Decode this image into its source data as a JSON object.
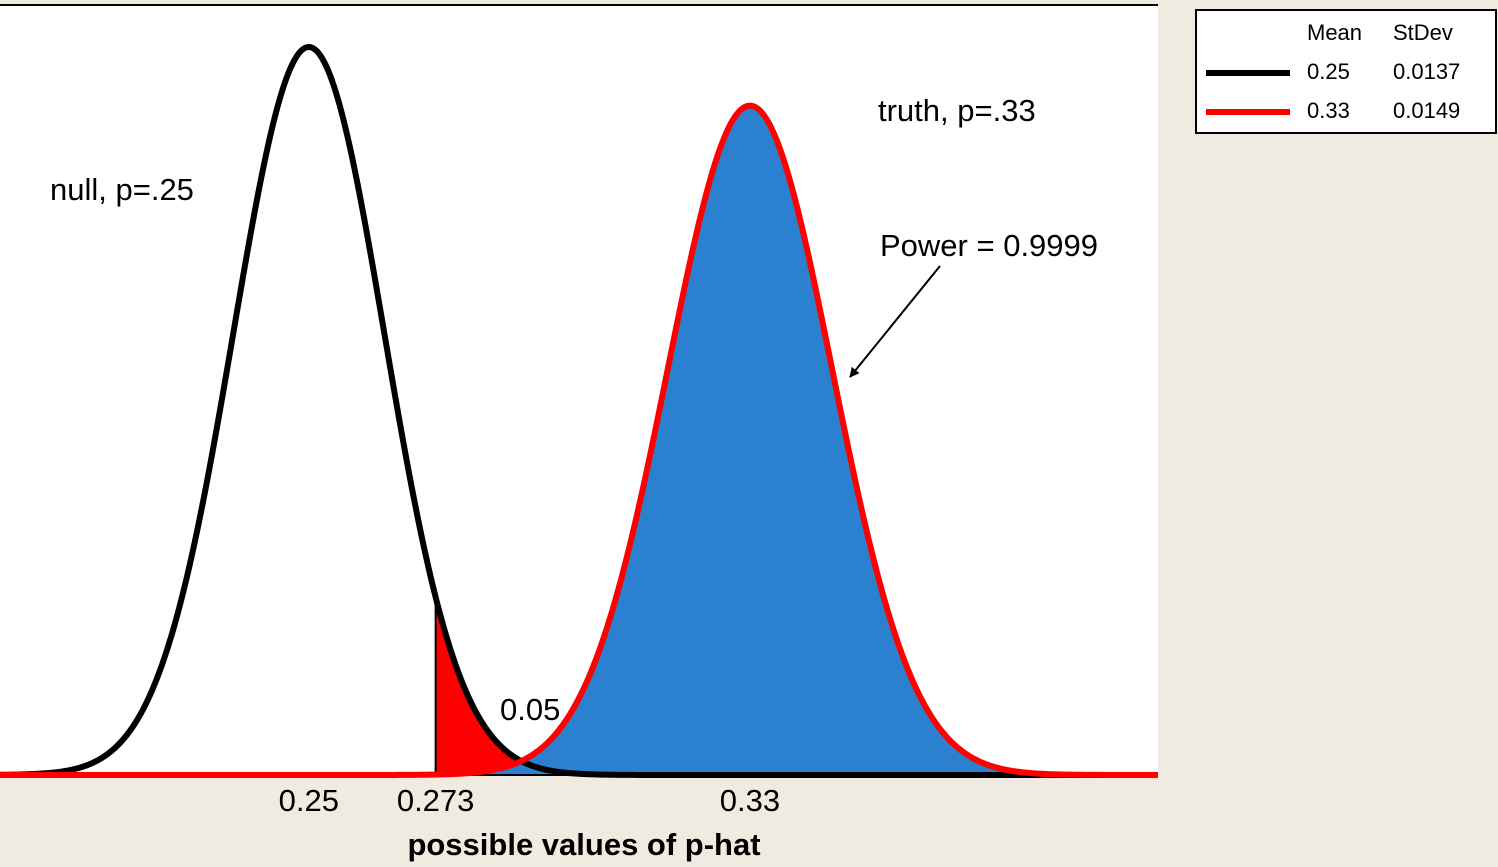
{
  "chart_data": {
    "type": "normal-curves",
    "xlabel": "possible values of p-hat",
    "xlim": [
      0.194,
      0.404
    ],
    "ylim": [
      0,
      30.8
    ],
    "xticks": [
      0.25,
      0.273,
      0.33
    ],
    "critical_value": 0.273,
    "legend": {
      "headers": [
        "Mean",
        "StDev"
      ]
    },
    "series": [
      {
        "mean": 0.25,
        "stdev": 0.0137,
        "color": "#000000",
        "fill": "#ff0000"
      },
      {
        "mean": 0.33,
        "stdev": 0.0149,
        "color": "#ff0000",
        "fill": "#2b80cf"
      }
    ],
    "annotations": {
      "null_label": "null, p=.25",
      "truth_label": "truth, p=.33",
      "power_label": "Power = 0.9999",
      "alpha_label": "0.05"
    }
  }
}
